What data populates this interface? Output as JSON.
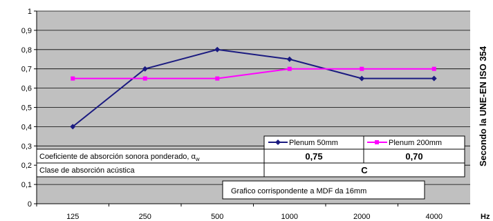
{
  "chart_data": {
    "type": "line",
    "categories": [
      "125",
      "250",
      "500",
      "1000",
      "2000",
      "4000"
    ],
    "ylim": [
      0,
      1
    ],
    "yticks": [
      "0",
      "0,1",
      "0,2",
      "0,3",
      "0,4",
      "0,5",
      "0,6",
      "0,7",
      "0,8",
      "0,9",
      "1"
    ],
    "xunit": "Hz",
    "side_title": "Secondo la UNE-EN ISO 354",
    "grid": true,
    "series": [
      {
        "name": "Plenum 50mm",
        "color": "#1a1a80",
        "marker": "diamond",
        "values": [
          0.4,
          0.7,
          0.8,
          0.75,
          0.65,
          0.65
        ]
      },
      {
        "name": "Plenum 200mm",
        "color": "#ff00ff",
        "marker": "square",
        "values": [
          0.65,
          0.65,
          0.65,
          0.7,
          0.7,
          0.7
        ]
      }
    ],
    "table": {
      "row1_label": "Coeficiente de absorción sonora ponderado, α",
      "row1_sub": "w",
      "row1_values": [
        "0,75",
        "0,70"
      ],
      "row2_label": "Clase de absorción acústica",
      "row2_value": "C"
    },
    "annotation": "Grafico corrispondente a MDF da 16mm"
  }
}
